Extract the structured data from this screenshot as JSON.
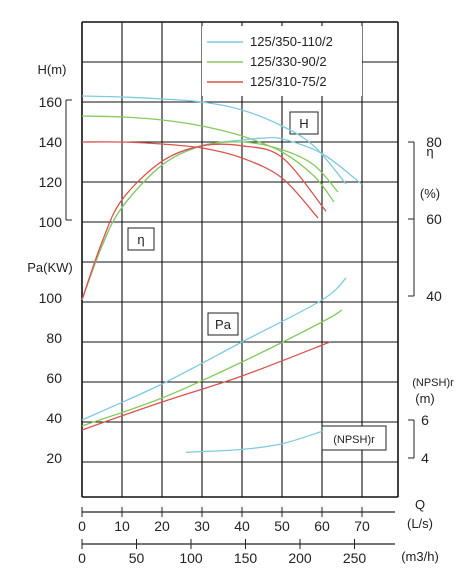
{
  "chart_data": {
    "type": "line",
    "legend": {
      "placement": "top-right",
      "entries": [
        {
          "name": "125/350-110/2",
          "color": "#7ecbe0"
        },
        {
          "name": "125/330-90/2",
          "color": "#86c95e"
        },
        {
          "name": "125/310-75/2",
          "color": "#d9534f"
        }
      ]
    },
    "grid": true,
    "axes": {
      "H": {
        "label": "H(m)",
        "ticks": [
          "100",
          "120",
          "140",
          "160"
        ],
        "range": [
          100,
          160
        ]
      },
      "Pa": {
        "label": "Pa(KW)",
        "ticks": [
          "20",
          "40",
          "60",
          "80",
          "100"
        ],
        "range": [
          20,
          100
        ]
      },
      "eta": {
        "label": "η",
        "unit": "(%)",
        "ticks": [
          "40",
          "60",
          "80"
        ],
        "range": [
          40,
          80
        ]
      },
      "npsh": {
        "label": "(NPSH)r",
        "unit": "(m)",
        "ticks": [
          "4",
          "6"
        ],
        "range": [
          4,
          6
        ]
      },
      "Q": {
        "label": "Q",
        "unit": "(L/s)",
        "ticks": [
          "0",
          "10",
          "20",
          "30",
          "40",
          "50",
          "60",
          "70"
        ],
        "range": [
          0,
          70
        ]
      },
      "Qh": {
        "label": "(m3/h)",
        "ticks": [
          "0",
          "50",
          "100",
          "150",
          "200",
          "250"
        ],
        "range": [
          0,
          250
        ]
      }
    },
    "box_labels": {
      "H": "H",
      "eta": "η",
      "Pa": "Pa",
      "npsh": "(NPSH)r"
    },
    "series": [
      {
        "name": "125/350-110/2",
        "curve": "H",
        "x": [
          0,
          10,
          20,
          30,
          40,
          50,
          58,
          66
        ],
        "values": [
          163,
          162.5,
          161.5,
          160,
          156,
          148,
          138,
          119
        ]
      },
      {
        "name": "125/330-90/2",
        "curve": "H",
        "x": [
          0,
          10,
          20,
          30,
          40,
          50,
          58,
          63
        ],
        "values": [
          153,
          152.5,
          151,
          148,
          143,
          135,
          123,
          110
        ]
      },
      {
        "name": "125/310-75/2",
        "curve": "H",
        "x": [
          0,
          10,
          20,
          30,
          40,
          50,
          59
        ],
        "values": [
          140,
          140,
          139,
          137,
          132,
          122,
          102
        ]
      },
      {
        "name": "125/350-110/2",
        "curve": "eta",
        "x": [
          0,
          5,
          10,
          20,
          30,
          40,
          45,
          50,
          60,
          70
        ],
        "values": [
          39,
          53,
          63,
          74,
          79,
          80.5,
          81,
          80.8,
          77,
          69
        ]
      },
      {
        "name": "125/330-90/2",
        "curve": "eta",
        "x": [
          0,
          5,
          10,
          20,
          30,
          40,
          50,
          58,
          64
        ],
        "values": [
          39,
          53,
          63,
          74,
          79,
          80,
          78,
          74,
          67
        ]
      },
      {
        "name": "125/310-75/2",
        "curve": "eta",
        "x": [
          0,
          5,
          10,
          20,
          30,
          40,
          50,
          61
        ],
        "values": [
          39,
          54,
          65,
          75,
          79,
          79,
          76,
          62
        ]
      },
      {
        "name": "125/350-110/2",
        "curve": "Pa",
        "x": [
          0,
          20,
          40,
          60,
          66
        ],
        "values": [
          39,
          57,
          78,
          99,
          110
        ]
      },
      {
        "name": "125/330-90/2",
        "curve": "Pa",
        "x": [
          0,
          20,
          40,
          60,
          65
        ],
        "values": [
          36,
          50,
          68,
          88,
          94
        ]
      },
      {
        "name": "125/310-75/2",
        "curve": "Pa",
        "x": [
          0,
          20,
          40,
          62
        ],
        "values": [
          34,
          48,
          61,
          78
        ]
      },
      {
        "name": "NPSHr",
        "curve": "NPSHr",
        "x": [
          26,
          40,
          50,
          60
        ],
        "values": [
          4.3,
          4.45,
          4.75,
          5.4
        ]
      }
    ]
  }
}
